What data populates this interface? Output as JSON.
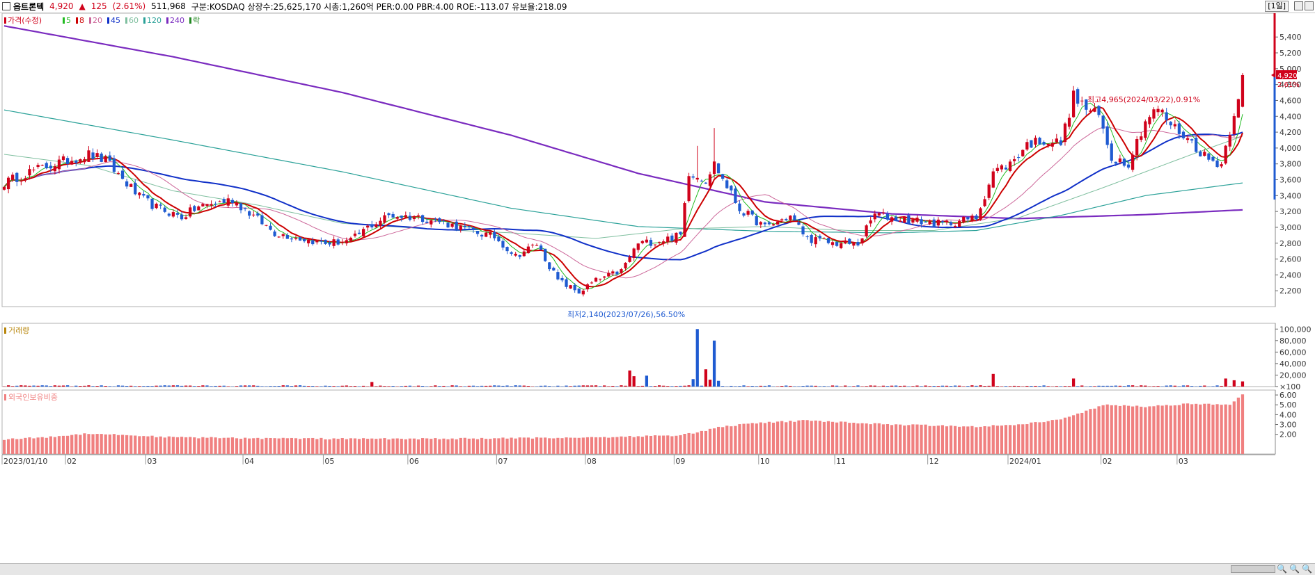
{
  "header": {
    "name": "옵트론텍",
    "price": "4,920",
    "change_arrow": "▲",
    "change": "125",
    "change_pct": "(2.61%)",
    "volume": "511,968",
    "info": "구분:KOSDAQ 상장수:25,625,170 시총:1,260억 PER:0.00 PBR:4.00 ROE:-113.07 유보율:218.09",
    "period": "[1일]"
  },
  "colors": {
    "up": "#d0021b",
    "down": "#1f5bd1",
    "ma5": "#22bb22",
    "ma8": "#cc0000",
    "ma20": "#cc6699",
    "ma45": "#1030c8",
    "ma60": "#7fbf9f",
    "ma120": "#2aa198",
    "ma240": "#7a2bbf",
    "vol_legend": "#b8860b",
    "foreign": "#f08080"
  },
  "chart_data": [
    {
      "type": "candlestick",
      "legend": [
        {
          "label": "가격(수정)",
          "color": "#d0021b"
        },
        {
          "label": "5",
          "color": "#22bb22"
        },
        {
          "label": "8",
          "color": "#cc0000"
        },
        {
          "label": "20",
          "color": "#cc6699"
        },
        {
          "label": "45",
          "color": "#1030c8"
        },
        {
          "label": "60",
          "color": "#7fbf9f"
        },
        {
          "label": "120",
          "color": "#2aa198"
        },
        {
          "label": "240",
          "color": "#7a2bbf"
        },
        {
          "label": "락",
          "color": "#228822"
        }
      ],
      "ylim": [
        2000,
        5700
      ],
      "yticks": [
        2200,
        2400,
        2600,
        2800,
        3000,
        3200,
        3400,
        3600,
        3800,
        4000,
        4200,
        4400,
        4600,
        4800,
        5000,
        5200,
        5400
      ],
      "ytick_labels": [
        "2,200",
        "2,400",
        "2,600",
        "2,800",
        "3,000",
        "3,200",
        "3,400",
        "3,600",
        "3,800",
        "4,000",
        "4,200",
        "4,400",
        "4,600",
        "4,800",
        "5,000",
        "5,200",
        "5,400"
      ],
      "xticks": [
        {
          "i": 0,
          "label": "2023/01/10"
        },
        {
          "i": 15,
          "label": "02"
        },
        {
          "i": 34,
          "label": "03"
        },
        {
          "i": 57,
          "label": "04"
        },
        {
          "i": 76,
          "label": "05"
        },
        {
          "i": 96,
          "label": "06"
        },
        {
          "i": 117,
          "label": "07"
        },
        {
          "i": 138,
          "label": "08"
        },
        {
          "i": 159,
          "label": "09"
        },
        {
          "i": 179,
          "label": "10"
        },
        {
          "i": 197,
          "label": "11"
        },
        {
          "i": 219,
          "label": "12"
        },
        {
          "i": 238,
          "label": "2024/01"
        },
        {
          "i": 260,
          "label": "02"
        },
        {
          "i": 278,
          "label": "03"
        }
      ],
      "anchors": [
        [
          0,
          3560
        ],
        [
          6,
          3700
        ],
        [
          12,
          3800
        ],
        [
          20,
          3920
        ],
        [
          24,
          3840
        ],
        [
          32,
          3380
        ],
        [
          36,
          3250
        ],
        [
          42,
          3130
        ],
        [
          46,
          3260
        ],
        [
          54,
          3350
        ],
        [
          60,
          3100
        ],
        [
          64,
          2930
        ],
        [
          70,
          2860
        ],
        [
          76,
          2800
        ],
        [
          82,
          2830
        ],
        [
          86,
          3000
        ],
        [
          91,
          3150
        ],
        [
          98,
          3130
        ],
        [
          104,
          3060
        ],
        [
          110,
          2960
        ],
        [
          116,
          2880
        ],
        [
          121,
          2640
        ],
        [
          126,
          2790
        ],
        [
          131,
          2330
        ],
        [
          136,
          2180
        ],
        [
          140,
          2330
        ],
        [
          146,
          2450
        ],
        [
          150,
          2800
        ],
        [
          154,
          2820
        ],
        [
          160,
          2900
        ],
        [
          162,
          3700
        ],
        [
          166,
          3600
        ],
        [
          168,
          3800
        ],
        [
          174,
          3230
        ],
        [
          180,
          3000
        ],
        [
          186,
          3140
        ],
        [
          190,
          2860
        ],
        [
          196,
          2800
        ],
        [
          202,
          2790
        ],
        [
          206,
          3170
        ],
        [
          210,
          3120
        ],
        [
          216,
          3080
        ],
        [
          222,
          3040
        ],
        [
          230,
          3120
        ],
        [
          234,
          3700
        ],
        [
          238,
          3800
        ],
        [
          242,
          4050
        ],
        [
          246,
          4100
        ],
        [
          250,
          4060
        ],
        [
          253,
          4650
        ],
        [
          256,
          4500
        ],
        [
          259,
          4400
        ],
        [
          262,
          3880
        ],
        [
          266,
          3820
        ],
        [
          270,
          4350
        ],
        [
          273,
          4500
        ],
        [
          276,
          4300
        ],
        [
          280,
          4120
        ],
        [
          285,
          3850
        ],
        [
          288,
          3800
        ],
        [
          291,
          4450
        ],
        [
          293,
          4920
        ]
      ],
      "last_close": 4920,
      "last_close_label": "4,920",
      "last_change_label": "2.61%",
      "high_annotation": "최고4,965(2024/03/22),0.91%",
      "low_annotation": "최저2,140(2023/07/26),56.50%",
      "ma240_path": [
        [
          0,
          5540
        ],
        [
          40,
          5150
        ],
        [
          80,
          4700
        ],
        [
          120,
          4160
        ],
        [
          150,
          3680
        ],
        [
          180,
          3320
        ],
        [
          210,
          3170
        ],
        [
          240,
          3110
        ],
        [
          270,
          3160
        ],
        [
          293,
          3220
        ]
      ],
      "ma120_path": [
        [
          0,
          4480
        ],
        [
          40,
          4100
        ],
        [
          80,
          3700
        ],
        [
          120,
          3240
        ],
        [
          150,
          3010
        ],
        [
          180,
          2950
        ],
        [
          210,
          2930
        ],
        [
          230,
          2960
        ],
        [
          250,
          3150
        ],
        [
          270,
          3400
        ],
        [
          293,
          3560
        ]
      ],
      "ma60_path": [
        [
          0,
          3920
        ],
        [
          20,
          3780
        ],
        [
          40,
          3460
        ],
        [
          60,
          3280
        ],
        [
          80,
          3050
        ],
        [
          100,
          2980
        ],
        [
          120,
          2930
        ],
        [
          140,
          2860
        ],
        [
          160,
          2980
        ],
        [
          180,
          3010
        ],
        [
          200,
          2960
        ],
        [
          220,
          2960
        ],
        [
          240,
          3120
        ],
        [
          260,
          3500
        ],
        [
          280,
          3900
        ],
        [
          293,
          4150
        ]
      ]
    },
    {
      "type": "bar",
      "legend": [
        {
          "label": "거래량",
          "color": "#b8860b"
        }
      ],
      "ylim": [
        0,
        110000
      ],
      "yticks": [
        100,
        20000,
        40000,
        60000,
        80000,
        100000
      ],
      "ytick_labels": [
        "×100",
        "20,000",
        "40,000",
        "60,000",
        "80,000",
        "100,000"
      ],
      "spikes": [
        {
          "i": 87,
          "v": 8000,
          "up": true
        },
        {
          "i": 148,
          "v": 28000,
          "up": true
        },
        {
          "i": 149,
          "v": 18000,
          "up": true
        },
        {
          "i": 152,
          "v": 19000,
          "up": false
        },
        {
          "i": 163,
          "v": 13000,
          "up": false
        },
        {
          "i": 164,
          "v": 100000,
          "up": false
        },
        {
          "i": 166,
          "v": 30000,
          "up": true
        },
        {
          "i": 167,
          "v": 12000,
          "up": true
        },
        {
          "i": 168,
          "v": 80000,
          "up": false
        },
        {
          "i": 169,
          "v": 10000,
          "up": false
        },
        {
          "i": 234,
          "v": 22000,
          "up": true
        },
        {
          "i": 253,
          "v": 14000,
          "up": true
        },
        {
          "i": 289,
          "v": 14000,
          "up": true
        },
        {
          "i": 291,
          "v": 11000,
          "up": true
        },
        {
          "i": 293,
          "v": 9000,
          "up": true
        }
      ]
    },
    {
      "type": "bar",
      "legend": [
        {
          "label": "외국인보유비중",
          "color": "#f08080"
        }
      ],
      "ylim": [
        0,
        6.5
      ],
      "yticks": [
        2,
        3,
        4,
        5,
        6
      ],
      "ytick_labels": [
        "2.00",
        "3.00",
        "4.00",
        "5.00",
        "6.00"
      ],
      "anchors": [
        [
          0,
          1.5
        ],
        [
          10,
          1.7
        ],
        [
          20,
          2.1
        ],
        [
          30,
          1.9
        ],
        [
          40,
          1.7
        ],
        [
          60,
          1.6
        ],
        [
          80,
          1.55
        ],
        [
          100,
          1.55
        ],
        [
          120,
          1.6
        ],
        [
          140,
          1.7
        ],
        [
          160,
          1.9
        ],
        [
          165,
          2.3
        ],
        [
          170,
          2.8
        ],
        [
          180,
          3.2
        ],
        [
          190,
          3.4
        ],
        [
          200,
          3.2
        ],
        [
          210,
          3.0
        ],
        [
          220,
          2.9
        ],
        [
          230,
          2.8
        ],
        [
          240,
          3.0
        ],
        [
          250,
          3.5
        ],
        [
          255,
          4.2
        ],
        [
          260,
          5.0
        ],
        [
          270,
          4.8
        ],
        [
          280,
          5.1
        ],
        [
          290,
          5.0
        ],
        [
          293,
          6.0
        ]
      ]
    }
  ]
}
